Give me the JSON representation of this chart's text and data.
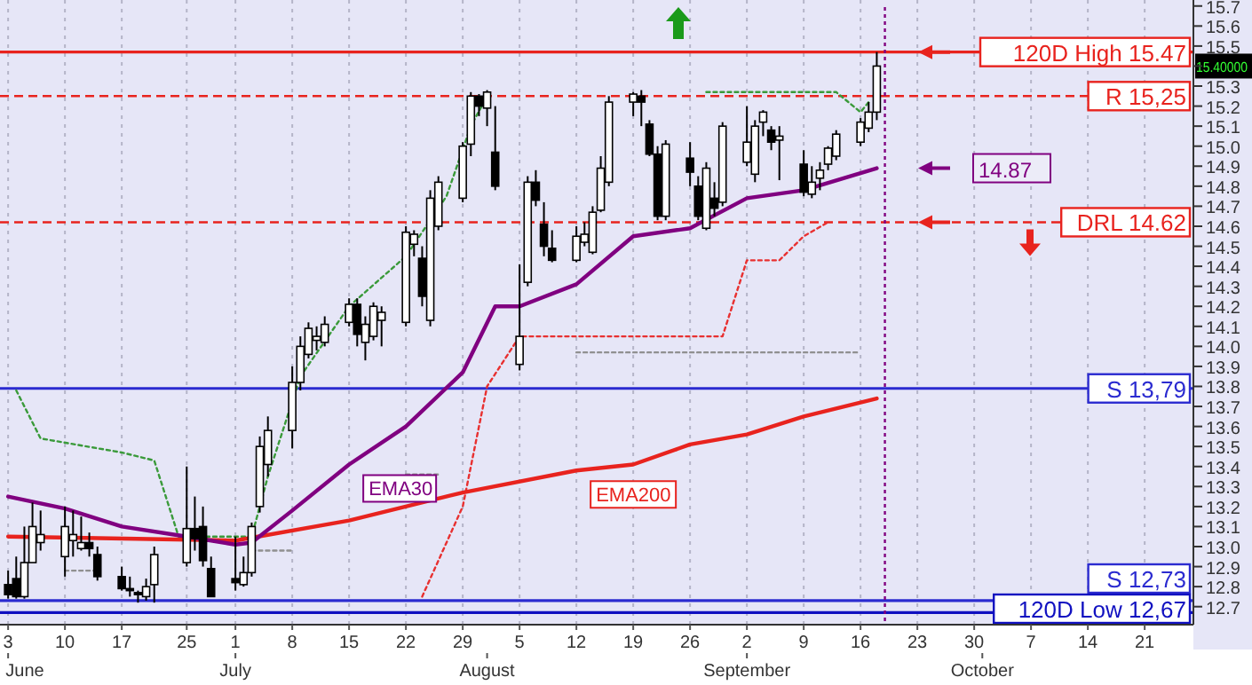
{
  "chart_data": {
    "type": "candlestick",
    "xlim": [
      "--06-02",
      "--10-27"
    ],
    "x2lim": [
      "--06-02",
      "--10-27"
    ],
    "ylim": [
      12.61,
      15.73
    ],
    "yticks": [
      12.7,
      12.8,
      12.9,
      {
        "value": 13.0,
        "label": "13.0"
      },
      13.1,
      13.2,
      13.3,
      13.4,
      13.5,
      13.6,
      13.7,
      13.8,
      13.9,
      {
        "value": 14.0,
        "label": "14.0"
      },
      14.1,
      14.2,
      14.3,
      14.4,
      14.5,
      14.6,
      14.7,
      14.8,
      14.9,
      {
        "value": 15.0,
        "label": "15.0"
      },
      15.1,
      15.2,
      15.3,
      {
        "value": 15.4,
        "label": null
      },
      15.5,
      15.6,
      15.7
    ],
    "xticks": [
      {
        "value": "--06-03",
        "label": "3"
      },
      {
        "value": "--06-10",
        "label": "10"
      },
      {
        "value": "--06-17",
        "label": "17"
      },
      {
        "value": "--06-25",
        "label": "25"
      },
      {
        "value": "--07-01",
        "label": "1"
      },
      {
        "value": "--07-08",
        "label": "8"
      },
      {
        "value": "--07-15",
        "label": "15"
      },
      {
        "value": "--07-22",
        "label": "22"
      },
      {
        "value": "--07-29",
        "label": "29"
      },
      {
        "value": "--08-05",
        "label": "5"
      },
      {
        "value": "--08-12",
        "label": "12"
      },
      {
        "value": "--08-19",
        "label": "19"
      },
      {
        "value": "--08-26",
        "label": "26"
      },
      {
        "value": "--09-02",
        "label": "2"
      },
      {
        "value": "--09-09",
        "label": "9"
      },
      {
        "value": "--09-16",
        "label": "16"
      },
      {
        "value": "--09-23",
        "label": "23"
      },
      {
        "value": "--09-30",
        "label": "30"
      },
      {
        "value": "--10-07",
        "label": "7"
      },
      {
        "value": "--10-14",
        "label": "14"
      },
      {
        "value": "--10-21",
        "label": "21"
      }
    ],
    "x2ticks": [
      {
        "value": "--06-03",
        "label": "June"
      },
      {
        "value": "--07-01",
        "label": "July"
      },
      {
        "value": "--08-01",
        "label": "August"
      },
      {
        "value": "--09-02",
        "label": "September"
      },
      {
        "value": "--10-01",
        "label": "October"
      }
    ],
    "grid": "x",
    "series": [
      {
        "color": "#000000",
        "x": [
          "--06-03",
          "--06-04",
          "--06-05",
          "--06-06",
          "--06-07",
          "--06-10",
          "--06-11",
          "--06-12",
          "--06-13",
          "--06-14",
          "--06-17",
          "--06-18",
          "--06-19",
          "--06-20",
          "--06-21",
          "--06-25",
          "--06-26",
          "--06-27",
          "--06-28",
          "--07-01",
          "--07-02",
          "--07-03",
          "--07-04",
          "--07-05",
          "--07-08",
          "--07-09",
          "--07-10",
          "--07-11",
          "--07-12",
          "--07-15",
          "--07-16",
          "--07-17",
          "--07-18",
          "--07-19",
          "--07-22",
          "--07-23",
          "--07-24",
          "--07-25",
          "--07-26",
          "--07-29",
          "--07-30",
          "--07-31",
          "--08-01",
          "--08-02",
          "--08-05",
          "--08-06",
          "--08-07",
          "--08-08",
          "--08-09",
          "--08-12",
          "--08-13",
          "--08-14",
          "--08-15",
          "--08-16",
          "--08-19",
          "--08-20",
          "--08-21",
          "--08-22",
          "--08-23",
          "--08-26",
          "--08-27",
          "--08-28",
          "--08-29",
          "--08-30",
          "--09-02",
          "--09-03",
          "--09-04",
          "--09-05",
          "--09-06",
          "--09-09",
          "--09-10",
          "--09-11",
          "--09-12",
          "--09-13",
          "--09-16",
          "--09-17",
          "--09-18"
        ],
        "ohlc": [
          [
            12.81,
            12.88,
            12.74,
            12.76
          ],
          [
            12.84,
            12.95,
            12.74,
            12.75
          ],
          [
            12.75,
            13.1,
            12.74,
            12.92
          ],
          [
            12.92,
            13.22,
            12.92,
            13.1
          ],
          [
            13.02,
            13.18,
            12.98,
            13.06
          ],
          [
            12.95,
            13.2,
            12.85,
            13.1
          ],
          [
            13.03,
            13.18,
            12.95,
            13.06
          ],
          [
            12.99,
            13.15,
            12.98,
            13.02
          ],
          [
            13.02,
            13.07,
            12.95,
            12.99
          ],
          [
            12.96,
            13.0,
            12.83,
            12.85
          ],
          [
            12.85,
            12.9,
            12.78,
            12.79
          ],
          [
            12.79,
            12.85,
            12.75,
            12.78
          ],
          [
            12.77,
            12.78,
            12.72,
            12.76
          ],
          [
            12.75,
            12.84,
            12.73,
            12.8
          ],
          [
            12.81,
            13.0,
            12.72,
            12.96
          ],
          [
            12.92,
            13.4,
            12.9,
            13.09
          ],
          [
            13.09,
            13.25,
            12.98,
            13.04
          ],
          [
            13.1,
            13.2,
            12.9,
            12.93
          ],
          [
            12.89,
            12.95,
            12.75,
            12.75
          ],
          [
            12.84,
            13.05,
            12.78,
            12.82
          ],
          [
            12.81,
            12.95,
            12.8,
            12.87
          ],
          [
            12.87,
            13.12,
            12.85,
            13.1
          ],
          [
            13.2,
            13.55,
            13.17,
            13.5
          ],
          [
            13.41,
            13.65,
            13.35,
            13.58
          ],
          [
            13.58,
            13.9,
            13.49,
            13.82
          ],
          [
            13.82,
            14.05,
            13.78,
            14.0
          ],
          [
            13.96,
            14.12,
            13.94,
            14.09
          ],
          [
            14.03,
            14.1,
            13.98,
            14.05
          ],
          [
            14.02,
            14.15,
            14.0,
            14.11
          ],
          [
            14.12,
            14.24,
            14.1,
            14.21
          ],
          [
            14.21,
            14.24,
            14.0,
            14.06
          ],
          [
            14.02,
            14.15,
            13.93,
            14.11
          ],
          [
            14.05,
            14.22,
            14.03,
            14.2
          ],
          [
            14.13,
            14.2,
            14.0,
            14.17
          ],
          [
            14.12,
            14.6,
            14.1,
            14.57
          ],
          [
            14.51,
            14.58,
            14.45,
            14.56
          ],
          [
            14.44,
            14.5,
            14.2,
            14.25
          ],
          [
            14.13,
            14.78,
            14.1,
            14.74
          ],
          [
            14.6,
            14.85,
            14.58,
            14.82
          ],
          [
            14.74,
            15.02,
            14.72,
            15.0
          ],
          [
            15.01,
            15.27,
            14.95,
            15.25
          ],
          [
            15.25,
            15.26,
            15.15,
            15.2
          ],
          [
            15.19,
            15.28,
            15.1,
            15.27
          ],
          [
            14.97,
            15.2,
            14.78,
            14.8
          ],
          [
            13.91,
            14.41,
            13.88,
            14.05
          ],
          [
            14.32,
            14.85,
            14.3,
            14.82
          ],
          [
            14.82,
            14.88,
            14.7,
            14.73
          ],
          [
            14.61,
            14.72,
            14.45,
            14.5
          ],
          [
            14.49,
            14.58,
            14.42,
            14.43
          ],
          [
            14.43,
            14.6,
            14.42,
            14.55
          ],
          [
            14.52,
            14.62,
            14.5,
            14.56
          ],
          [
            14.47,
            14.7,
            14.46,
            14.67
          ],
          [
            14.68,
            14.95,
            14.67,
            14.89
          ],
          [
            14.82,
            15.25,
            14.8,
            15.22
          ],
          [
            15.22,
            15.27,
            15.15,
            15.26
          ],
          [
            15.25,
            15.28,
            15.1,
            15.22
          ],
          [
            15.11,
            15.13,
            14.95,
            14.96
          ],
          [
            14.96,
            15.0,
            14.63,
            14.65
          ],
          [
            14.65,
            15.03,
            14.63,
            15.01
          ],
          [
            14.94,
            15.02,
            14.8,
            14.87
          ],
          [
            14.8,
            14.85,
            14.63,
            14.65
          ],
          [
            14.59,
            14.92,
            14.58,
            14.89
          ],
          [
            14.74,
            14.82,
            14.65,
            14.69
          ],
          [
            14.72,
            15.12,
            14.7,
            15.1
          ],
          [
            14.92,
            15.2,
            14.9,
            15.02
          ],
          [
            14.86,
            15.13,
            14.82,
            15.1
          ],
          [
            15.12,
            15.18,
            15.05,
            15.17
          ],
          [
            15.08,
            15.1,
            14.98,
            15.02
          ],
          [
            15.03,
            15.1,
            14.83,
            15.05
          ],
          [
            14.91,
            14.98,
            14.75,
            14.77
          ],
          [
            14.76,
            14.9,
            14.74,
            14.82
          ],
          [
            14.84,
            14.92,
            14.78,
            14.88
          ],
          [
            14.91,
            15.0,
            14.88,
            14.99
          ],
          [
            14.95,
            15.08,
            14.93,
            15.06
          ],
          [
            15.02,
            15.14,
            15.0,
            15.12
          ],
          [
            15.09,
            15.22,
            15.07,
            15.17
          ],
          [
            15.17,
            15.47,
            15.13,
            15.4
          ]
        ]
      },
      {
        "type": "line",
        "name": "EMA30",
        "color": "#800080",
        "line_style": "solid",
        "x": [
          "--06-03",
          "--06-10",
          "--06-17",
          "--06-25",
          "--07-01",
          "--07-03",
          "--07-08",
          "--07-15",
          "--07-22",
          "--07-29",
          "--08-02",
          "--08-05",
          "--08-12",
          "--08-19",
          "--08-26",
          "--09-02",
          "--09-09",
          "--09-18"
        ],
        "values": [
          13.25,
          13.19,
          13.1,
          13.05,
          13.01,
          13.02,
          13.18,
          13.41,
          13.6,
          13.87,
          14.2,
          14.2,
          14.31,
          14.55,
          14.59,
          14.74,
          14.78,
          14.89
        ]
      },
      {
        "type": "line",
        "name": "EMA200",
        "color": "#e8231e",
        "line_style": "solid",
        "x": [
          "--06-03",
          "--07-01",
          "--07-15",
          "--07-29",
          "--08-12",
          "--08-19",
          "--08-26",
          "--09-02",
          "--09-09",
          "--09-18"
        ],
        "values": [
          13.05,
          13.03,
          13.13,
          13.27,
          13.38,
          13.41,
          13.51,
          13.56,
          13.65,
          13.74
        ]
      },
      {
        "type": "line",
        "color": "#3a9a3a",
        "line_style": "dotted",
        "x": [
          "--06-04",
          "--06-07",
          "--06-17",
          "--06-21",
          "--06-24",
          "--06-27",
          "--07-03",
          "--07-05",
          "--07-09",
          "--07-15",
          "--07-22",
          "--07-27",
          "--07-30",
          "--08-01",
          "--08-02",
          "--08-28",
          "--09-13",
          "--09-16",
          "--09-17"
        ],
        "values": [
          13.78,
          13.54,
          13.47,
          13.43,
          13.05,
          13.05,
          13.05,
          13.35,
          13.85,
          14.2,
          14.45,
          14.75,
          15.1,
          15.25,
          null,
          15.27,
          15.27,
          15.17,
          15.22
        ]
      },
      {
        "type": "line",
        "color": "#e83030",
        "line_style": "dotted",
        "x": [
          "--07-24",
          "--07-29",
          "--08-01",
          "--08-05",
          "--08-30",
          "--09-02",
          "--09-06",
          "--09-09",
          "--09-12"
        ],
        "values": [
          12.75,
          13.2,
          13.8,
          14.05,
          14.05,
          14.43,
          14.43,
          14.55,
          14.62
        ]
      },
      {
        "type": "line",
        "color": "#909090",
        "line_style": "dotted",
        "x": [
          "--06-10",
          "--06-14",
          "--06-15",
          "--07-03",
          "--07-08",
          "--07-09",
          "--07-22",
          "--07-26",
          "--07-27",
          "--08-12",
          "--09-16"
        ],
        "values": [
          12.88,
          12.88,
          null,
          12.98,
          12.98,
          null,
          13.36,
          13.36,
          null,
          13.97,
          13.97
        ]
      }
    ],
    "ref_lines": [
      {
        "axis": "y",
        "value": 15.47,
        "label": "120D High 15.47",
        "color": "#e8231e",
        "line_style": "solid"
      },
      {
        "axis": "y",
        "value": 15.25,
        "label": "R 15,25",
        "color": "#e8231e",
        "line_style": "dashed"
      },
      {
        "axis": "y",
        "value": 14.62,
        "label": "DRL 14.62",
        "color": "#e8231e",
        "line_style": "dashed"
      },
      {
        "axis": "y",
        "value": 13.79,
        "label": "S 13,79",
        "color": "#2b2bd0",
        "line_style": "solid"
      },
      {
        "axis": "y",
        "value": 12.73,
        "label": "S 12,73",
        "color": "#2b2bd0",
        "line_style": "solid"
      },
      {
        "axis": "y",
        "value": 12.67,
        "label": "120D Low 12,67",
        "color": "#1010c0",
        "line_style": "solid"
      },
      {
        "axis": "x",
        "value": "--09-19",
        "color": "#800080",
        "line_style": "dotted"
      }
    ],
    "annotations": [
      "15.40000",
      "14.87"
    ]
  }
}
